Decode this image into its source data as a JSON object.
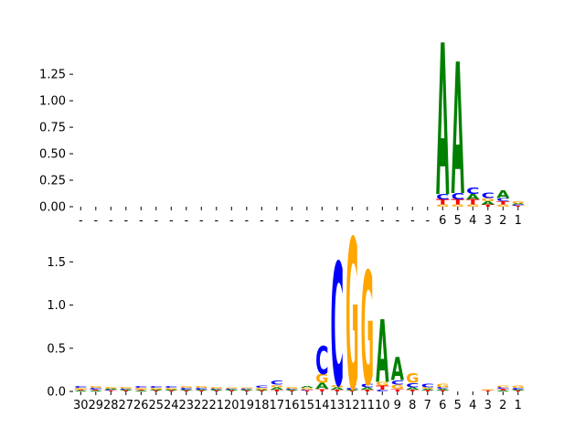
{
  "colors": {
    "A": "#008000",
    "C": "#0000ff",
    "G": "#ffa500",
    "T": "#ff0000",
    "axis": "#000000"
  },
  "chart_data": [
    {
      "type": "sequence-logo",
      "title": "",
      "xlabel": "",
      "ylabel": "",
      "ylim": [
        0,
        1.45
      ],
      "yticks": [
        "0.00",
        "0.25",
        "0.50",
        "0.75",
        "1.00",
        "1.25"
      ],
      "ytick_values": [
        0,
        0.25,
        0.5,
        0.75,
        1.0,
        1.25
      ],
      "tick_labels": [
        "-",
        "-",
        "-",
        "-",
        "-",
        "-",
        "-",
        "-",
        "-",
        "-",
        "-",
        "-",
        "-",
        "-",
        "-",
        "-",
        "-",
        "-",
        "-",
        "-",
        "-",
        "-",
        "-",
        "-",
        "6",
        "5",
        "4",
        "3",
        "2",
        "1"
      ],
      "positions": [
        {
          "label": "-",
          "letters": []
        },
        {
          "label": "-",
          "letters": []
        },
        {
          "label": "-",
          "letters": []
        },
        {
          "label": "-",
          "letters": []
        },
        {
          "label": "-",
          "letters": []
        },
        {
          "label": "-",
          "letters": []
        },
        {
          "label": "-",
          "letters": []
        },
        {
          "label": "-",
          "letters": []
        },
        {
          "label": "-",
          "letters": []
        },
        {
          "label": "-",
          "letters": []
        },
        {
          "label": "-",
          "letters": []
        },
        {
          "label": "-",
          "letters": []
        },
        {
          "label": "-",
          "letters": []
        },
        {
          "label": "-",
          "letters": []
        },
        {
          "label": "-",
          "letters": []
        },
        {
          "label": "-",
          "letters": []
        },
        {
          "label": "-",
          "letters": []
        },
        {
          "label": "-",
          "letters": []
        },
        {
          "label": "-",
          "letters": []
        },
        {
          "label": "-",
          "letters": []
        },
        {
          "label": "-",
          "letters": []
        },
        {
          "label": "-",
          "letters": []
        },
        {
          "label": "-",
          "letters": []
        },
        {
          "label": "-",
          "letters": []
        },
        {
          "label": "6",
          "letters": [
            {
              "b": "G",
              "h": 0.02
            },
            {
              "b": "T",
              "h": 0.05
            },
            {
              "b": "C",
              "h": 0.05
            },
            {
              "b": "A",
              "h": 1.43
            }
          ]
        },
        {
          "label": "5",
          "letters": [
            {
              "b": "G",
              "h": 0.02
            },
            {
              "b": "T",
              "h": 0.05
            },
            {
              "b": "C",
              "h": 0.06
            },
            {
              "b": "A",
              "h": 1.24
            }
          ]
        },
        {
          "label": "4",
          "letters": [
            {
              "b": "G",
              "h": 0.02
            },
            {
              "b": "T",
              "h": 0.05
            },
            {
              "b": "A",
              "h": 0.05
            },
            {
              "b": "C",
              "h": 0.06
            }
          ]
        },
        {
          "label": "3",
          "letters": [
            {
              "b": "T",
              "h": 0.02
            },
            {
              "b": "A",
              "h": 0.03
            },
            {
              "b": "G",
              "h": 0.03
            },
            {
              "b": "C",
              "h": 0.05
            }
          ]
        },
        {
          "label": "2",
          "letters": [
            {
              "b": "G",
              "h": 0.02
            },
            {
              "b": "T",
              "h": 0.03
            },
            {
              "b": "C",
              "h": 0.03
            },
            {
              "b": "A",
              "h": 0.07
            }
          ]
        },
        {
          "label": "1",
          "letters": [
            {
              "b": "T",
              "h": 0.01
            },
            {
              "b": "C",
              "h": 0.01
            },
            {
              "b": "A",
              "h": 0.01
            },
            {
              "b": "G",
              "h": 0.02
            }
          ]
        }
      ]
    },
    {
      "type": "sequence-logo",
      "title": "",
      "xlabel": "",
      "ylabel": "",
      "ylim": [
        0,
        1.8
      ],
      "yticks": [
        "0.0",
        "0.5",
        "1.0",
        "1.5"
      ],
      "ytick_values": [
        0,
        0.5,
        1.0,
        1.5
      ],
      "tick_labels": [
        "30",
        "29",
        "28",
        "27",
        "26",
        "25",
        "24",
        "23",
        "22",
        "21",
        "20",
        "19",
        "18",
        "17",
        "16",
        "15",
        "14",
        "13",
        "12",
        "11",
        "10",
        "9",
        "8",
        "7",
        "6",
        "5",
        "4",
        "3",
        "2",
        "1"
      ],
      "positions": [
        {
          "label": "30",
          "letters": [
            {
              "b": "A",
              "h": 0.01
            },
            {
              "b": "T",
              "h": 0.01
            },
            {
              "b": "G",
              "h": 0.02
            },
            {
              "b": "C",
              "h": 0.02
            }
          ]
        },
        {
          "label": "29",
          "letters": [
            {
              "b": "A",
              "h": 0.01
            },
            {
              "b": "T",
              "h": 0.01
            },
            {
              "b": "C",
              "h": 0.02
            },
            {
              "b": "G",
              "h": 0.02
            }
          ]
        },
        {
          "label": "28",
          "letters": [
            {
              "b": "T",
              "h": 0.01
            },
            {
              "b": "C",
              "h": 0.01
            },
            {
              "b": "A",
              "h": 0.01
            },
            {
              "b": "G",
              "h": 0.02
            }
          ]
        },
        {
          "label": "27",
          "letters": [
            {
              "b": "T",
              "h": 0.01
            },
            {
              "b": "A",
              "h": 0.01
            },
            {
              "b": "C",
              "h": 0.01
            },
            {
              "b": "G",
              "h": 0.02
            }
          ]
        },
        {
          "label": "26",
          "letters": [
            {
              "b": "A",
              "h": 0.01
            },
            {
              "b": "T",
              "h": 0.01
            },
            {
              "b": "G",
              "h": 0.02
            },
            {
              "b": "C",
              "h": 0.02
            }
          ]
        },
        {
          "label": "25",
          "letters": [
            {
              "b": "T",
              "h": 0.01
            },
            {
              "b": "A",
              "h": 0.01
            },
            {
              "b": "G",
              "h": 0.02
            },
            {
              "b": "C",
              "h": 0.02
            }
          ]
        },
        {
          "label": "24",
          "letters": [
            {
              "b": "T",
              "h": 0.01
            },
            {
              "b": "A",
              "h": 0.01
            },
            {
              "b": "G",
              "h": 0.02
            },
            {
              "b": "C",
              "h": 0.02
            }
          ]
        },
        {
          "label": "23",
          "letters": [
            {
              "b": "T",
              "h": 0.01
            },
            {
              "b": "A",
              "h": 0.01
            },
            {
              "b": "C",
              "h": 0.02
            },
            {
              "b": "G",
              "h": 0.02
            }
          ]
        },
        {
          "label": "22",
          "letters": [
            {
              "b": "T",
              "h": 0.01
            },
            {
              "b": "A",
              "h": 0.01
            },
            {
              "b": "C",
              "h": 0.02
            },
            {
              "b": "G",
              "h": 0.02
            }
          ]
        },
        {
          "label": "21",
          "letters": [
            {
              "b": "T",
              "h": 0.01
            },
            {
              "b": "A",
              "h": 0.01
            },
            {
              "b": "C",
              "h": 0.01
            },
            {
              "b": "G",
              "h": 0.02
            }
          ]
        },
        {
          "label": "20",
          "letters": [
            {
              "b": "T",
              "h": 0.01
            },
            {
              "b": "A",
              "h": 0.01
            },
            {
              "b": "C",
              "h": 0.01
            },
            {
              "b": "G",
              "h": 0.01
            }
          ]
        },
        {
          "label": "19",
          "letters": [
            {
              "b": "T",
              "h": 0.01
            },
            {
              "b": "A",
              "h": 0.01
            },
            {
              "b": "C",
              "h": 0.01
            },
            {
              "b": "G",
              "h": 0.01
            }
          ]
        },
        {
          "label": "18",
          "letters": [
            {
              "b": "T",
              "h": 0.01
            },
            {
              "b": "A",
              "h": 0.01
            },
            {
              "b": "G",
              "h": 0.02
            },
            {
              "b": "C",
              "h": 0.03
            }
          ]
        },
        {
          "label": "17",
          "letters": [
            {
              "b": "T",
              "h": 0.02
            },
            {
              "b": "A",
              "h": 0.03
            },
            {
              "b": "G",
              "h": 0.03
            },
            {
              "b": "C",
              "h": 0.05
            }
          ]
        },
        {
          "label": "16",
          "letters": [
            {
              "b": "T",
              "h": 0.01
            },
            {
              "b": "A",
              "h": 0.01
            },
            {
              "b": "C",
              "h": 0.01
            },
            {
              "b": "G",
              "h": 0.02
            }
          ]
        },
        {
          "label": "15",
          "letters": [
            {
              "b": "T",
              "h": 0.01
            },
            {
              "b": "C",
              "h": 0.01
            },
            {
              "b": "G",
              "h": 0.02
            },
            {
              "b": "A",
              "h": 0.02
            }
          ]
        },
        {
          "label": "14",
          "letters": [
            {
              "b": "T",
              "h": 0.03
            },
            {
              "b": "A",
              "h": 0.07
            },
            {
              "b": "G",
              "h": 0.1
            },
            {
              "b": "C",
              "h": 0.32
            }
          ]
        },
        {
          "label": "13",
          "letters": [
            {
              "b": "T",
              "h": 0.02
            },
            {
              "b": "A",
              "h": 0.03
            },
            {
              "b": "G",
              "h": 0.03
            },
            {
              "b": "C",
              "h": 1.42
            }
          ]
        },
        {
          "label": "12",
          "letters": [
            {
              "b": "T",
              "h": 0.01
            },
            {
              "b": "A",
              "h": 0.01
            },
            {
              "b": "C",
              "h": 0.02
            },
            {
              "b": "G",
              "h": 1.74
            }
          ]
        },
        {
          "label": "11",
          "letters": [
            {
              "b": "T",
              "h": 0.02
            },
            {
              "b": "A",
              "h": 0.03
            },
            {
              "b": "C",
              "h": 0.04
            },
            {
              "b": "G",
              "h": 1.31
            }
          ]
        },
        {
          "label": "10",
          "letters": [
            {
              "b": "C",
              "h": 0.02
            },
            {
              "b": "T",
              "h": 0.05
            },
            {
              "b": "G",
              "h": 0.04
            },
            {
              "b": "A",
              "h": 0.72
            }
          ]
        },
        {
          "label": "9",
          "letters": [
            {
              "b": "T",
              "h": 0.03
            },
            {
              "b": "G",
              "h": 0.05
            },
            {
              "b": "C",
              "h": 0.05
            },
            {
              "b": "A",
              "h": 0.27
            }
          ]
        },
        {
          "label": "8",
          "letters": [
            {
              "b": "T",
              "h": 0.02
            },
            {
              "b": "A",
              "h": 0.03
            },
            {
              "b": "C",
              "h": 0.05
            },
            {
              "b": "G",
              "h": 0.11
            }
          ]
        },
        {
          "label": "7",
          "letters": [
            {
              "b": "T",
              "h": 0.01
            },
            {
              "b": "A",
              "h": 0.02
            },
            {
              "b": "G",
              "h": 0.02
            },
            {
              "b": "C",
              "h": 0.04
            }
          ]
        },
        {
          "label": "6",
          "letters": [
            {
              "b": "T",
              "h": 0.01
            },
            {
              "b": "A",
              "h": 0.02
            },
            {
              "b": "C",
              "h": 0.02
            },
            {
              "b": "G",
              "h": 0.04
            }
          ]
        },
        {
          "label": "5",
          "letters": []
        },
        {
          "label": "4",
          "letters": []
        },
        {
          "label": "3",
          "letters": [
            {
              "b": "T",
              "h": 0.01
            },
            {
              "b": "G",
              "h": 0.01
            }
          ]
        },
        {
          "label": "2",
          "letters": [
            {
              "b": "A",
              "h": 0.01
            },
            {
              "b": "T",
              "h": 0.02
            },
            {
              "b": "C",
              "h": 0.02
            },
            {
              "b": "G",
              "h": 0.02
            }
          ]
        },
        {
          "label": "1",
          "letters": [
            {
              "b": "T",
              "h": 0.01
            },
            {
              "b": "A",
              "h": 0.01
            },
            {
              "b": "C",
              "h": 0.02
            },
            {
              "b": "G",
              "h": 0.03
            }
          ]
        }
      ]
    }
  ]
}
